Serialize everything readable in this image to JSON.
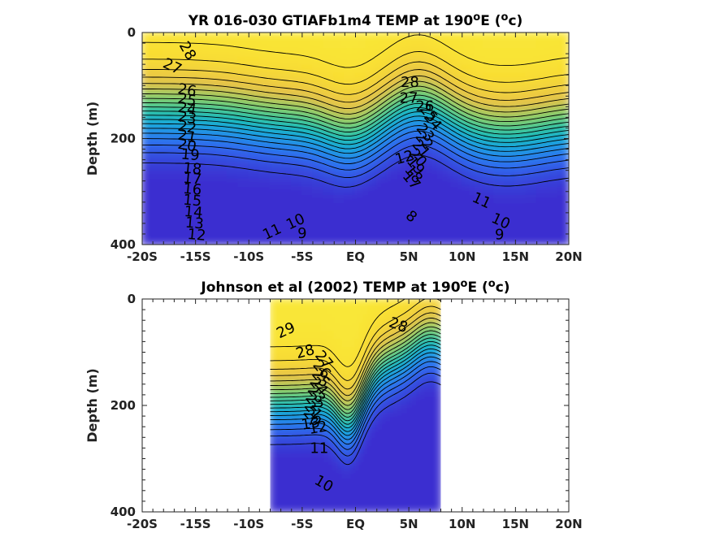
{
  "chart_data": [
    {
      "type": "heatmap",
      "title": "YR 016-030 GTIAFb1m4 TEMP at 190",
      "title_sup": "o",
      "title_tail": "E (",
      "title_unit_sup": "o",
      "title_end": "c)",
      "ylabel": "Depth (m)",
      "xlim": [
        -20,
        20
      ],
      "ylim": [
        0,
        400
      ],
      "y_reversed": true,
      "x_ticks": [
        -20,
        -15,
        -10,
        -5,
        0,
        5,
        10,
        15,
        20
      ],
      "x_tick_labels": [
        "-20S",
        "-15S",
        "-10S",
        "-5S",
        "EQ",
        "5N",
        "10N",
        "15N",
        "20N"
      ],
      "y_ticks": [
        0,
        200,
        400
      ],
      "y_tick_labels": [
        "0",
        "200",
        "400"
      ],
      "data_extent": [
        -20,
        20
      ],
      "colorscale": [
        "#3b2fd0",
        "#2f6ef0",
        "#1aa3e0",
        "#1fc2a9",
        "#7fce6a",
        "#e6c04a",
        "#f9de33",
        "#f9f03c"
      ],
      "contour_levels": [
        8,
        9,
        10,
        11,
        12,
        13,
        14,
        15,
        16,
        17,
        18,
        19,
        20,
        21,
        22,
        23,
        24,
        25,
        26,
        27,
        28
      ],
      "contour_labels": [
        {
          "text": "28",
          "x": -15.8,
          "y": 35,
          "rot": 60
        },
        {
          "text": "27",
          "x": -17.2,
          "y": 65,
          "rot": 25
        },
        {
          "text": "26",
          "x": -15.8,
          "y": 110,
          "rot": 10
        },
        {
          "text": "25",
          "x": -15.8,
          "y": 128,
          "rot": 10
        },
        {
          "text": "24",
          "x": -15.8,
          "y": 145,
          "rot": 10
        },
        {
          "text": "23",
          "x": -15.8,
          "y": 162,
          "rot": 10
        },
        {
          "text": "22",
          "x": -15.8,
          "y": 180,
          "rot": 10
        },
        {
          "text": "21",
          "x": -15.8,
          "y": 197,
          "rot": 10
        },
        {
          "text": "20",
          "x": -15.8,
          "y": 214,
          "rot": 10
        },
        {
          "text": "19",
          "x": -15.5,
          "y": 232,
          "rot": 5
        },
        {
          "text": "18",
          "x": -15.3,
          "y": 258,
          "rot": 5
        },
        {
          "text": "17",
          "x": -15.3,
          "y": 277,
          "rot": 5
        },
        {
          "text": "16",
          "x": -15.3,
          "y": 297,
          "rot": 5
        },
        {
          "text": "15",
          "x": -15.3,
          "y": 318,
          "rot": 5
        },
        {
          "text": "14",
          "x": -15.2,
          "y": 340,
          "rot": 5
        },
        {
          "text": "13",
          "x": -15.1,
          "y": 361,
          "rot": 5
        },
        {
          "text": "12",
          "x": -14.9,
          "y": 383,
          "rot": 5
        },
        {
          "text": "11",
          "x": -7.8,
          "y": 377,
          "rot": -25
        },
        {
          "text": "10",
          "x": -5.6,
          "y": 358,
          "rot": -25
        },
        {
          "text": "9",
          "x": -5.0,
          "y": 380,
          "rot": 0
        },
        {
          "text": "8",
          "x": 5.2,
          "y": 348,
          "rot": 40
        },
        {
          "text": "28",
          "x": 5.1,
          "y": 95,
          "rot": 0
        },
        {
          "text": "27",
          "x": 5.0,
          "y": 125,
          "rot": 0
        },
        {
          "text": "26",
          "x": 6.5,
          "y": 140,
          "rot": 0
        },
        {
          "text": "25",
          "x": 6.8,
          "y": 153,
          "rot": 50
        },
        {
          "text": "24",
          "x": 7.2,
          "y": 168,
          "rot": 50
        },
        {
          "text": "23",
          "x": 6.5,
          "y": 190,
          "rot": 50
        },
        {
          "text": "22",
          "x": 6.4,
          "y": 205,
          "rot": 50
        },
        {
          "text": "21",
          "x": 6.1,
          "y": 220,
          "rot": 50
        },
        {
          "text": "20",
          "x": 5.8,
          "y": 237,
          "rot": 50
        },
        {
          "text": "19",
          "x": 5.6,
          "y": 252,
          "rot": 50
        },
        {
          "text": "18",
          "x": 5.4,
          "y": 268,
          "rot": 50
        },
        {
          "text": "17",
          "x": 5.2,
          "y": 280,
          "rot": 50
        },
        {
          "text": "12",
          "x": 4.6,
          "y": 237,
          "rot": -15
        },
        {
          "text": "11",
          "x": 11.8,
          "y": 318,
          "rot": 25
        },
        {
          "text": "10",
          "x": 13.6,
          "y": 357,
          "rot": 25
        },
        {
          "text": "9",
          "x": 13.5,
          "y": 382,
          "rot": 0
        }
      ]
    },
    {
      "type": "heatmap",
      "title": "Johnson et al (2002) TEMP at 190",
      "title_sup": "o",
      "title_tail": "E (",
      "title_unit_sup": "o",
      "title_end": "c)",
      "ylabel": "Depth (m)",
      "xlim": [
        -20,
        20
      ],
      "ylim": [
        0,
        400
      ],
      "y_reversed": true,
      "x_ticks": [
        -20,
        -15,
        -10,
        -5,
        0,
        5,
        10,
        15,
        20
      ],
      "x_tick_labels": [
        "-20S",
        "-15S",
        "-10S",
        "-5S",
        "EQ",
        "5N",
        "10N",
        "15N",
        "20N"
      ],
      "y_ticks": [
        0,
        200,
        400
      ],
      "y_tick_labels": [
        "0",
        "200",
        "400"
      ],
      "data_extent": [
        -8,
        8
      ],
      "colorscale": [
        "#3b2fd0",
        "#2f6ef0",
        "#1aa3e0",
        "#1fc2a9",
        "#7fce6a",
        "#e6c04a",
        "#f9de33",
        "#f9f03c"
      ],
      "contour_levels": [
        10,
        11,
        12,
        13,
        14,
        15,
        16,
        17,
        18,
        19,
        20,
        21,
        22,
        23,
        24,
        25,
        26,
        27,
        28,
        29
      ],
      "contour_labels": [
        {
          "text": "29",
          "x": -6.5,
          "y": 60,
          "rot": -25
        },
        {
          "text": "28",
          "x": -4.7,
          "y": 100,
          "rot": -15
        },
        {
          "text": "28",
          "x": 4.0,
          "y": 50,
          "rot": 20
        },
        {
          "text": "27",
          "x": -3.0,
          "y": 115,
          "rot": 50
        },
        {
          "text": "26",
          "x": -3.2,
          "y": 133,
          "rot": 50
        },
        {
          "text": "25",
          "x": -3.3,
          "y": 150,
          "rot": 50
        },
        {
          "text": "24",
          "x": -3.5,
          "y": 165,
          "rot": 50
        },
        {
          "text": "23",
          "x": -3.7,
          "y": 180,
          "rot": 50
        },
        {
          "text": "22",
          "x": -3.9,
          "y": 195,
          "rot": 50
        },
        {
          "text": "21",
          "x": -4.0,
          "y": 210,
          "rot": 50
        },
        {
          "text": "20",
          "x": -4.1,
          "y": 223,
          "rot": 50
        },
        {
          "text": "13",
          "x": -4.2,
          "y": 235,
          "rot": -10
        },
        {
          "text": "12",
          "x": -3.5,
          "y": 243,
          "rot": -10
        },
        {
          "text": "11",
          "x": -3.4,
          "y": 282,
          "rot": 0
        },
        {
          "text": "10",
          "x": -3.0,
          "y": 348,
          "rot": 30
        }
      ]
    }
  ]
}
